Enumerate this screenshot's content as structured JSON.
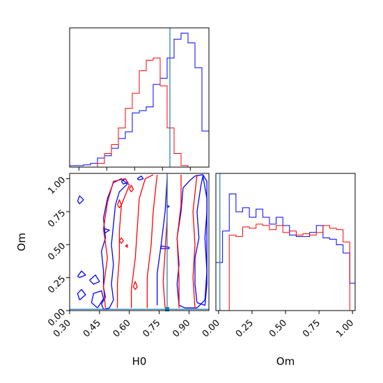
{
  "chart_data": {
    "type": "corner",
    "parameters": [
      "H0",
      "Om"
    ],
    "truth": {
      "H0": 0.79,
      "Om": 0.01
    },
    "colors": {
      "blue": "#0000ff",
      "red": "#ff0000",
      "truth": "#1f77b4"
    },
    "panels": [
      {
        "id": "hist-H0",
        "type": "histogram",
        "xlim": [
          0.25,
          1.0
        ],
        "ylim": [
          0,
          185
        ],
        "bin_edges": [
          0.25,
          0.2875,
          0.325,
          0.3625,
          0.4,
          0.4375,
          0.475,
          0.5125,
          0.55,
          0.5875,
          0.625,
          0.6625,
          0.7,
          0.7375,
          0.775,
          0.8125,
          0.85,
          0.8875,
          0.925,
          0.9625,
          1.0
        ],
        "series": [
          {
            "color": "blue",
            "counts": [
              2,
              2,
              3,
              5,
              12,
              15,
              25,
              38,
              47,
              72,
              75,
              80,
              110,
              118,
              145,
              170,
              178,
              165,
              132,
              48
            ]
          },
          {
            "color": "red",
            "counts": [
              0,
              0,
              0,
              0,
              5,
              18,
              30,
              52,
              78,
              98,
              128,
              142,
              145,
              108,
              52,
              18,
              2,
              0,
              0,
              0
            ]
          }
        ]
      },
      {
        "id": "contour-H0-Om",
        "type": "contour",
        "xlim": [
          0.3,
          1.0
        ],
        "ylim": [
          0.0,
          1.04
        ],
        "xticks": [
          "0.30",
          "0.45",
          "0.60",
          "0.75",
          "0.90"
        ],
        "xtick_values": [
          0.3,
          0.45,
          0.6,
          0.75,
          0.9
        ],
        "yticks": [
          "0.00",
          "0.25",
          "0.50",
          "0.75",
          "1.00"
        ],
        "ytick_values": [
          0.0,
          0.25,
          0.5,
          0.75,
          1.0
        ],
        "xlabel": "H0",
        "ylabel": "Om",
        "contours": [
          {
            "color": "blue",
            "points": [
              [
                0.94,
                0.06
              ],
              [
                0.93,
                0.2
              ],
              [
                0.93,
                0.4
              ],
              [
                0.95,
                0.55
              ],
              [
                0.94,
                0.75
              ],
              [
                0.96,
                0.95
              ],
              [
                0.97,
                1.02
              ],
              [
                0.99,
                0.85
              ],
              [
                0.99,
                0.5
              ],
              [
                0.99,
                0.2
              ],
              [
                0.98,
                0.04
              ],
              [
                0.94,
                0.06
              ]
            ]
          },
          {
            "color": "blue",
            "points": [
              [
                0.85,
                0.04
              ],
              [
                0.84,
                0.2
              ],
              [
                0.85,
                0.35
              ],
              [
                0.84,
                0.55
              ],
              [
                0.86,
                0.75
              ],
              [
                0.87,
                0.93
              ],
              [
                0.9,
                0.98
              ],
              [
                0.93,
                1.02
              ],
              [
                0.97,
                1.03
              ],
              [
                0.99,
                0.98
              ],
              [
                0.99,
                0.75
              ],
              [
                0.98,
                0.55
              ],
              [
                0.99,
                0.3
              ],
              [
                0.98,
                0.08
              ],
              [
                0.94,
                0.02
              ],
              [
                0.88,
                0.02
              ],
              [
                0.85,
                0.04
              ]
            ]
          },
          {
            "color": "blue",
            "points": [
              [
                0.47,
                0.01
              ],
              [
                0.46,
                0.05
              ],
              [
                0.48,
                0.1
              ],
              [
                0.47,
                0.18
              ],
              [
                0.47,
                0.3
              ],
              [
                0.46,
                0.45
              ],
              [
                0.48,
                0.55
              ],
              [
                0.47,
                0.7
              ],
              [
                0.49,
                0.85
              ],
              [
                0.52,
                0.97
              ],
              [
                0.56,
                1.0
              ],
              [
                0.59,
                0.96
              ],
              [
                0.55,
                0.9
              ],
              [
                0.53,
                0.8
              ],
              [
                0.52,
                0.65
              ],
              [
                0.51,
                0.5
              ],
              [
                0.52,
                0.35
              ],
              [
                0.51,
                0.2
              ],
              [
                0.52,
                0.08
              ],
              [
                0.5,
                0.02
              ],
              [
                0.47,
                0.01
              ]
            ]
          },
          {
            "color": "blue",
            "points": [
              [
                0.44,
                0.02
              ],
              [
                0.41,
                0.06
              ],
              [
                0.42,
                0.13
              ],
              [
                0.46,
                0.15
              ],
              [
                0.47,
                0.09
              ],
              [
                0.44,
                0.02
              ]
            ]
          },
          {
            "color": "blue",
            "points": [
              [
                0.35,
                0.08
              ],
              [
                0.34,
                0.13
              ],
              [
                0.36,
                0.16
              ],
              [
                0.38,
                0.12
              ],
              [
                0.35,
                0.08
              ]
            ]
          },
          {
            "color": "blue",
            "points": [
              [
                0.34,
                0.26
              ],
              [
                0.36,
                0.3
              ],
              [
                0.38,
                0.27
              ],
              [
                0.35,
                0.25
              ],
              [
                0.34,
                0.26
              ]
            ]
          },
          {
            "color": "blue",
            "points": [
              [
                0.4,
                0.23
              ],
              [
                0.43,
                0.27
              ],
              [
                0.45,
                0.22
              ],
              [
                0.42,
                0.2
              ],
              [
                0.4,
                0.23
              ]
            ]
          },
          {
            "color": "blue",
            "points": [
              [
                0.34,
                0.83
              ],
              [
                0.35,
                0.87
              ],
              [
                0.37,
                0.84
              ],
              [
                0.35,
                0.81
              ],
              [
                0.34,
                0.83
              ]
            ]
          },
          {
            "color": "blue",
            "points": [
              [
                0.47,
                0.6
              ],
              [
                0.48,
                0.62
              ],
              [
                0.5,
                0.61
              ],
              [
                0.48,
                0.59
              ],
              [
                0.47,
                0.6
              ]
            ]
          },
          {
            "color": "blue",
            "points": [
              [
                0.56,
                0.98
              ],
              [
                0.58,
                1.0
              ],
              [
                0.59,
                0.97
              ],
              [
                0.57,
                0.96
              ],
              [
                0.56,
                0.98
              ]
            ]
          },
          {
            "color": "blue",
            "points": [
              [
                0.64,
                1.0
              ],
              [
                0.66,
                1.02
              ],
              [
                0.67,
                1.0
              ],
              [
                0.65,
                0.99
              ],
              [
                0.64,
                1.0
              ]
            ]
          },
          {
            "color": "blue",
            "points": [
              [
                0.79,
                0.78
              ],
              [
                0.79,
                0.8
              ],
              [
                0.8,
                0.79
              ],
              [
                0.79,
                0.78
              ]
            ]
          },
          {
            "color": "blue",
            "points": [
              [
                0.76,
                0.47
              ],
              [
                0.76,
                0.49
              ],
              [
                0.8,
                0.48
              ],
              [
                0.8,
                0.47
              ],
              [
                0.76,
                0.47
              ]
            ]
          },
          {
            "color": "blue",
            "points": [
              [
                0.74,
                0.04
              ],
              [
                0.74,
                0.28
              ],
              [
                0.76,
                0.5
              ],
              [
                0.78,
                0.75
              ],
              [
                0.79,
                1.0
              ]
            ]
          },
          {
            "color": "red",
            "points": [
              [
                0.48,
                0.02
              ],
              [
                0.47,
                0.18
              ],
              [
                0.49,
                0.4
              ],
              [
                0.47,
                0.62
              ],
              [
                0.49,
                0.82
              ],
              [
                0.52,
                0.98
              ],
              [
                0.58,
                1.0
              ],
              [
                0.6,
                0.95
              ],
              [
                0.56,
                0.8
              ],
              [
                0.55,
                0.6
              ],
              [
                0.55,
                0.4
              ],
              [
                0.54,
                0.2
              ],
              [
                0.54,
                0.02
              ]
            ]
          },
          {
            "color": "red",
            "points": [
              [
                0.61,
                0.02
              ],
              [
                0.61,
                0.16
              ],
              [
                0.63,
                0.4
              ],
              [
                0.64,
                0.62
              ],
              [
                0.65,
                0.85
              ],
              [
                0.68,
                1.0
              ],
              [
                0.72,
                1.03
              ]
            ]
          },
          {
            "color": "red",
            "points": [
              [
                0.69,
                0.02
              ],
              [
                0.69,
                0.25
              ],
              [
                0.71,
                0.5
              ],
              [
                0.72,
                0.75
              ],
              [
                0.74,
                1.03
              ]
            ]
          },
          {
            "color": "red",
            "points": [
              [
                0.78,
                0.02
              ],
              [
                0.77,
                0.22
              ],
              [
                0.78,
                0.45
              ],
              [
                0.79,
                0.7
              ],
              [
                0.79,
                1.03
              ]
            ]
          },
          {
            "color": "red",
            "points": [
              [
                0.85,
                0.02
              ],
              [
                0.85,
                0.25
              ],
              [
                0.84,
                0.55
              ],
              [
                0.86,
                0.8
              ],
              [
                0.86,
                1.03
              ]
            ]
          },
          {
            "color": "red",
            "points": [
              [
                0.93,
                0.02
              ],
              [
                0.92,
                0.25
              ],
              [
                0.93,
                0.5
              ],
              [
                0.92,
                0.75
              ],
              [
                0.94,
                1.03
              ]
            ]
          },
          {
            "color": "red",
            "points": [
              [
                0.6,
                0.92
              ],
              [
                0.61,
                0.95
              ],
              [
                0.62,
                0.92
              ],
              [
                0.61,
                0.9
              ],
              [
                0.6,
                0.92
              ]
            ]
          },
          {
            "color": "red",
            "points": [
              [
                0.55,
                0.53
              ],
              [
                0.56,
                0.55
              ],
              [
                0.57,
                0.53
              ],
              [
                0.56,
                0.51
              ],
              [
                0.55,
                0.53
              ]
            ]
          },
          {
            "color": "red",
            "points": [
              [
                0.58,
                0.49
              ],
              [
                0.59,
                0.5
              ],
              [
                0.59,
                0.48
              ],
              [
                0.58,
                0.49
              ]
            ]
          },
          {
            "color": "red",
            "points": [
              [
                0.62,
                0.18
              ],
              [
                0.63,
                0.22
              ],
              [
                0.64,
                0.18
              ],
              [
                0.63,
                0.16
              ],
              [
                0.62,
                0.18
              ]
            ]
          },
          {
            "color": "red",
            "points": [
              [
                0.54,
                0.8
              ],
              [
                0.55,
                0.84
              ],
              [
                0.56,
                0.8
              ],
              [
                0.55,
                0.78
              ],
              [
                0.54,
                0.8
              ]
            ]
          }
        ]
      },
      {
        "id": "hist-Om",
        "type": "histogram",
        "xlim": [
          -0.02,
          1.02
        ],
        "ylim": [
          0,
          100
        ],
        "xticks": [
          "0.00",
          "0.25",
          "0.50",
          "0.75",
          "1.00"
        ],
        "xtick_values": [
          0.0,
          0.25,
          0.5,
          0.75,
          1.0
        ],
        "xlabel": "Om",
        "bin_edges": [
          -0.02,
          0.03,
          0.08,
          0.13,
          0.18,
          0.23,
          0.28,
          0.33,
          0.38,
          0.43,
          0.48,
          0.53,
          0.58,
          0.63,
          0.68,
          0.73,
          0.78,
          0.83,
          0.88,
          0.93,
          0.98,
          1.02
        ],
        "series": [
          {
            "color": "blue",
            "counts": [
              35,
              58,
              85,
              72,
              75,
              68,
              74,
              68,
              63,
              68,
              62,
              55,
              54,
              54,
              57,
              62,
              53,
              52,
              48,
              42,
              20
            ]
          },
          {
            "color": "red",
            "counts": [
              0,
              0,
              55,
              54,
              61,
              60,
              63,
              62,
              59,
              62,
              57,
              58,
              55,
              56,
              55,
              57,
              62,
              60,
              59,
              50,
              0
            ]
          }
        ]
      }
    ]
  }
}
